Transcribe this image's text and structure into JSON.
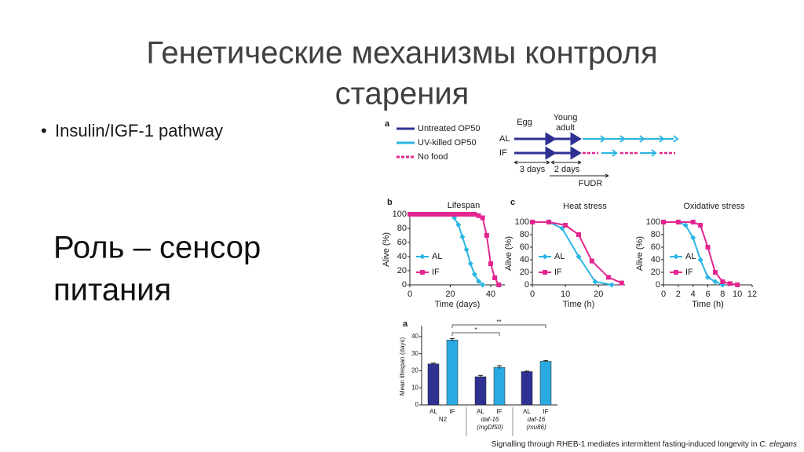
{
  "title": [
    "Генетические механизмы контроля",
    "старения"
  ],
  "bullets": [
    "Insulin/IGF-1 pathway"
  ],
  "statement": [
    "Роль – сенсор",
    "питания"
  ],
  "schematic": {
    "label": "a",
    "legend": [
      "Untreated OP50",
      "UV-killed OP50",
      "No food"
    ],
    "stages": [
      "Egg",
      "Young",
      "adult"
    ],
    "rows": [
      "AL",
      "IF"
    ],
    "durations": [
      "3 days",
      "2 days"
    ],
    "treatment": "FUDR"
  },
  "caption": [
    "Signalling through RHEB-1 mediates intermittent fasting-induced longevity in ",
    "C. elegans"
  ],
  "chart_data": [
    {
      "type": "line",
      "panel_label": "b",
      "title": "Lifespan",
      "xlabel": "Time (days)",
      "ylabel": "Alive (%)",
      "xlim": [
        0,
        47
      ],
      "xticks": [
        0,
        20,
        40
      ],
      "ylim": [
        0,
        100
      ],
      "yticks": [
        0,
        20,
        40,
        60,
        80,
        100
      ],
      "legend": "lower left",
      "series": [
        {
          "name": "AL",
          "color": "#2bb5e3",
          "marker": "diamond",
          "x": [
            0,
            2,
            4,
            6,
            8,
            10,
            12,
            14,
            16,
            18,
            20,
            22,
            24,
            26,
            28,
            30,
            32,
            34,
            36
          ],
          "values": [
            100,
            100,
            100,
            100,
            100,
            100,
            100,
            100,
            100,
            100,
            100,
            95,
            85,
            68,
            50,
            30,
            15,
            5,
            0
          ]
        },
        {
          "name": "IF",
          "color": "#e3268f",
          "marker": "square",
          "x": [
            0,
            2,
            4,
            6,
            8,
            10,
            12,
            14,
            16,
            18,
            20,
            22,
            24,
            26,
            28,
            30,
            32,
            34,
            36,
            38,
            40,
            42,
            44
          ],
          "values": [
            100,
            100,
            100,
            100,
            100,
            100,
            100,
            100,
            100,
            100,
            100,
            100,
            100,
            100,
            100,
            100,
            100,
            98,
            95,
            70,
            30,
            10,
            0
          ]
        }
      ]
    },
    {
      "type": "line",
      "panel_label": "c",
      "title": "Heat stress",
      "xlabel": "Time (h)",
      "ylabel": "Alive (%)",
      "xlim": [
        0,
        28
      ],
      "xticks": [
        0,
        10,
        20
      ],
      "ylim": [
        0,
        100
      ],
      "yticks": [
        0,
        20,
        40,
        60,
        80,
        100
      ],
      "legend": "lower left",
      "series": [
        {
          "name": "AL",
          "color": "#2bb5e3",
          "marker": "diamond",
          "x": [
            0,
            5,
            9,
            14,
            19,
            24
          ],
          "values": [
            100,
            100,
            90,
            45,
            5,
            0
          ]
        },
        {
          "name": "IF",
          "color": "#e3268f",
          "marker": "square",
          "x": [
            0,
            5,
            10,
            14,
            18,
            23,
            27
          ],
          "values": [
            100,
            100,
            95,
            80,
            38,
            12,
            3
          ]
        }
      ]
    },
    {
      "type": "line",
      "title": "Oxidative stress",
      "xlabel": "Time (h)",
      "ylabel": "Alive (%)",
      "xlim": [
        0,
        12
      ],
      "xticks": [
        0,
        2,
        4,
        6,
        8,
        10,
        12
      ],
      "ylim": [
        0,
        100
      ],
      "yticks": [
        0,
        20,
        40,
        60,
        80,
        100
      ],
      "legend": "lower left",
      "series": [
        {
          "name": "AL",
          "color": "#2bb5e3",
          "marker": "diamond",
          "x": [
            0,
            2,
            3,
            4,
            5,
            6,
            7,
            8
          ],
          "values": [
            100,
            100,
            95,
            75,
            40,
            12,
            5,
            0
          ]
        },
        {
          "name": "IF",
          "color": "#e3268f",
          "marker": "square",
          "x": [
            0,
            2,
            4,
            5,
            6,
            7,
            8,
            9,
            10
          ],
          "values": [
            100,
            100,
            100,
            95,
            60,
            20,
            5,
            2,
            0
          ]
        }
      ]
    },
    {
      "type": "bar",
      "panel_label": "a",
      "ylabel": "Mean lifespan (days)",
      "categories": [
        "AL",
        "IF",
        "AL",
        "IF",
        "AL",
        "IF"
      ],
      "groups": [
        [
          "N2"
        ],
        [
          "daf-16",
          "(mgDf50)"
        ],
        [
          "daf-16",
          "(mu86)"
        ]
      ],
      "values": [
        24,
        38,
        16.5,
        22,
        19.5,
        25.5
      ],
      "errors": [
        0.5,
        0.8,
        0.8,
        1,
        0.3,
        0.4
      ],
      "colors": [
        "#2e3192",
        "#29abe2",
        "#2e3192",
        "#29abe2",
        "#2e3192",
        "#29abe2"
      ],
      "significance": [
        "*",
        "**"
      ],
      "ylim": [
        0,
        45
      ],
      "yticks": [
        0,
        10,
        20,
        30,
        40
      ]
    }
  ]
}
